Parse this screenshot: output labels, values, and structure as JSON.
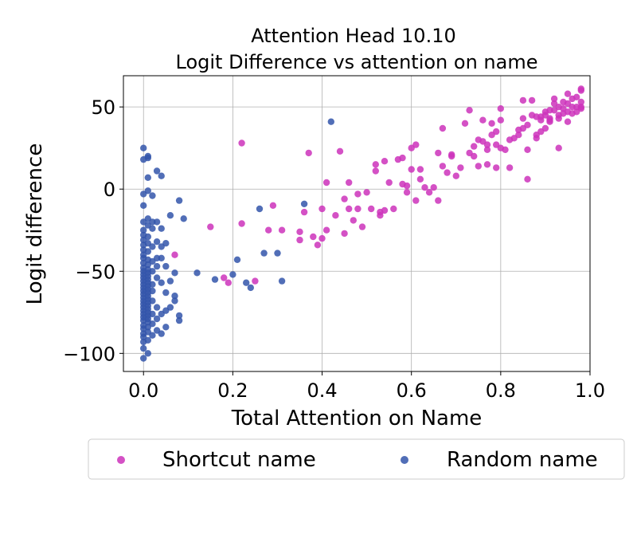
{
  "chart_data": {
    "type": "scatter",
    "title_line1": "Attention Head 10.10",
    "title_line2": "Logit Difference vs attention on name",
    "xlabel": "Total Attention on Name",
    "ylabel": "Logit difference",
    "xlim": [
      -0.045,
      1.0
    ],
    "ylim": [
      -111,
      69
    ],
    "xticks": [
      0.0,
      0.2,
      0.4,
      0.6,
      0.8,
      1.0
    ],
    "xtick_labels": [
      "0.0",
      "0.2",
      "0.4",
      "0.6",
      "0.8",
      "1.0"
    ],
    "yticks": [
      50,
      0,
      -50,
      -100
    ],
    "ytick_labels": [
      "50",
      "0",
      "−50",
      "−100"
    ],
    "grid": true,
    "legend_placement": "below",
    "series": [
      {
        "name": "Shortcut name",
        "color": "#cc33bb",
        "points": [
          [
            0.07,
            -40
          ],
          [
            0.15,
            -23
          ],
          [
            0.18,
            -54
          ],
          [
            0.19,
            -57
          ],
          [
            0.22,
            -21
          ],
          [
            0.22,
            28
          ],
          [
            0.25,
            -56
          ],
          [
            0.28,
            -25
          ],
          [
            0.29,
            -10
          ],
          [
            0.31,
            -25
          ],
          [
            0.35,
            -26
          ],
          [
            0.35,
            -31
          ],
          [
            0.36,
            -14
          ],
          [
            0.37,
            22
          ],
          [
            0.38,
            -29
          ],
          [
            0.39,
            -34
          ],
          [
            0.4,
            -12
          ],
          [
            0.4,
            -30
          ],
          [
            0.41,
            -25
          ],
          [
            0.41,
            4
          ],
          [
            0.43,
            -16
          ],
          [
            0.44,
            23
          ],
          [
            0.45,
            -27
          ],
          [
            0.45,
            -6
          ],
          [
            0.46,
            -12
          ],
          [
            0.46,
            4
          ],
          [
            0.47,
            -19
          ],
          [
            0.48,
            -3
          ],
          [
            0.48,
            -12
          ],
          [
            0.49,
            -23
          ],
          [
            0.5,
            -2
          ],
          [
            0.51,
            -12
          ],
          [
            0.52,
            11
          ],
          [
            0.52,
            15
          ],
          [
            0.53,
            -14
          ],
          [
            0.53,
            -16
          ],
          [
            0.54,
            17
          ],
          [
            0.54,
            -13
          ],
          [
            0.55,
            4
          ],
          [
            0.56,
            -12
          ],
          [
            0.57,
            18
          ],
          [
            0.58,
            19
          ],
          [
            0.58,
            3
          ],
          [
            0.59,
            -2
          ],
          [
            0.59,
            2
          ],
          [
            0.6,
            12
          ],
          [
            0.6,
            25
          ],
          [
            0.61,
            27
          ],
          [
            0.61,
            -7
          ],
          [
            0.62,
            12
          ],
          [
            0.62,
            6
          ],
          [
            0.63,
            1
          ],
          [
            0.64,
            -2
          ],
          [
            0.65,
            1
          ],
          [
            0.66,
            -7
          ],
          [
            0.66,
            22
          ],
          [
            0.67,
            37
          ],
          [
            0.67,
            14
          ],
          [
            0.68,
            10
          ],
          [
            0.69,
            21
          ],
          [
            0.69,
            20
          ],
          [
            0.7,
            8
          ],
          [
            0.71,
            13
          ],
          [
            0.72,
            40
          ],
          [
            0.73,
            48
          ],
          [
            0.73,
            22
          ],
          [
            0.74,
            26
          ],
          [
            0.74,
            20
          ],
          [
            0.75,
            30
          ],
          [
            0.75,
            14
          ],
          [
            0.76,
            42
          ],
          [
            0.76,
            29
          ],
          [
            0.77,
            27
          ],
          [
            0.77,
            24
          ],
          [
            0.77,
            15
          ],
          [
            0.78,
            40
          ],
          [
            0.78,
            33
          ],
          [
            0.79,
            13
          ],
          [
            0.79,
            35
          ],
          [
            0.79,
            27
          ],
          [
            0.8,
            25
          ],
          [
            0.8,
            49
          ],
          [
            0.8,
            42
          ],
          [
            0.81,
            24
          ],
          [
            0.82,
            30
          ],
          [
            0.82,
            13
          ],
          [
            0.83,
            31
          ],
          [
            0.84,
            36
          ],
          [
            0.84,
            33
          ],
          [
            0.85,
            54
          ],
          [
            0.85,
            43
          ],
          [
            0.85,
            37
          ],
          [
            0.86,
            39
          ],
          [
            0.86,
            24
          ],
          [
            0.86,
            6
          ],
          [
            0.87,
            54
          ],
          [
            0.87,
            45
          ],
          [
            0.88,
            44
          ],
          [
            0.88,
            31
          ],
          [
            0.88,
            33
          ],
          [
            0.89,
            35
          ],
          [
            0.89,
            44
          ],
          [
            0.89,
            42
          ],
          [
            0.9,
            47
          ],
          [
            0.9,
            37
          ],
          [
            0.9,
            45
          ],
          [
            0.91,
            41
          ],
          [
            0.91,
            48
          ],
          [
            0.91,
            43
          ],
          [
            0.91,
            42
          ],
          [
            0.92,
            52
          ],
          [
            0.92,
            55
          ],
          [
            0.92,
            48
          ],
          [
            0.93,
            45
          ],
          [
            0.93,
            50
          ],
          [
            0.93,
            43
          ],
          [
            0.93,
            25
          ],
          [
            0.94,
            53
          ],
          [
            0.94,
            49
          ],
          [
            0.94,
            46
          ],
          [
            0.95,
            47
          ],
          [
            0.95,
            52
          ],
          [
            0.95,
            58
          ],
          [
            0.95,
            41
          ],
          [
            0.96,
            50
          ],
          [
            0.96,
            55
          ],
          [
            0.96,
            46
          ],
          [
            0.97,
            50
          ],
          [
            0.97,
            56
          ],
          [
            0.97,
            47
          ],
          [
            0.98,
            60
          ],
          [
            0.98,
            50
          ],
          [
            0.98,
            53
          ],
          [
            0.98,
            61
          ],
          [
            0.98,
            49
          ]
        ]
      },
      {
        "name": "Random name",
        "color": "#3355aa",
        "points": [
          [
            0.0,
            -103
          ],
          [
            0.0,
            -97
          ],
          [
            0.0,
            -93
          ],
          [
            0.0,
            -90
          ],
          [
            0.0,
            -88
          ],
          [
            0.0,
            -85
          ],
          [
            0.0,
            -83
          ],
          [
            0.0,
            -80
          ],
          [
            0.0,
            -78
          ],
          [
            0.0,
            -76
          ],
          [
            0.0,
            -74
          ],
          [
            0.0,
            -72
          ],
          [
            0.0,
            -70
          ],
          [
            0.0,
            -68
          ],
          [
            0.0,
            -66
          ],
          [
            0.0,
            -64
          ],
          [
            0.0,
            -62
          ],
          [
            0.0,
            -60
          ],
          [
            0.0,
            -58
          ],
          [
            0.0,
            -56
          ],
          [
            0.0,
            -54
          ],
          [
            0.0,
            -52
          ],
          [
            0.0,
            -50
          ],
          [
            0.0,
            -48
          ],
          [
            0.0,
            -45
          ],
          [
            0.0,
            -42
          ],
          [
            0.0,
            -40
          ],
          [
            0.0,
            -37
          ],
          [
            0.0,
            -34
          ],
          [
            0.0,
            -31
          ],
          [
            0.0,
            -28
          ],
          [
            0.0,
            -25
          ],
          [
            0.0,
            -20
          ],
          [
            0.0,
            -10
          ],
          [
            0.0,
            -3
          ],
          [
            0.0,
            18
          ],
          [
            0.0,
            25
          ],
          [
            0.01,
            -100
          ],
          [
            0.01,
            -92
          ],
          [
            0.01,
            -87
          ],
          [
            0.01,
            -84
          ],
          [
            0.01,
            -81
          ],
          [
            0.01,
            -79
          ],
          [
            0.01,
            -77
          ],
          [
            0.01,
            -75
          ],
          [
            0.01,
            -73
          ],
          [
            0.01,
            -71
          ],
          [
            0.01,
            -69
          ],
          [
            0.01,
            -67
          ],
          [
            0.01,
            -65
          ],
          [
            0.01,
            -63
          ],
          [
            0.01,
            -61
          ],
          [
            0.01,
            -59
          ],
          [
            0.01,
            -57
          ],
          [
            0.01,
            -55
          ],
          [
            0.01,
            -53
          ],
          [
            0.01,
            -51
          ],
          [
            0.01,
            -49
          ],
          [
            0.01,
            -46
          ],
          [
            0.01,
            -43
          ],
          [
            0.01,
            -38
          ],
          [
            0.01,
            -33
          ],
          [
            0.01,
            -29
          ],
          [
            0.01,
            -22
          ],
          [
            0.01,
            -18
          ],
          [
            0.01,
            -1
          ],
          [
            0.01,
            7
          ],
          [
            0.01,
            19
          ],
          [
            0.01,
            20
          ],
          [
            0.02,
            -89
          ],
          [
            0.02,
            -82
          ],
          [
            0.02,
            -76
          ],
          [
            0.02,
            -68
          ],
          [
            0.02,
            -62
          ],
          [
            0.02,
            -58
          ],
          [
            0.02,
            -50
          ],
          [
            0.02,
            -44
          ],
          [
            0.02,
            -35
          ],
          [
            0.02,
            -24
          ],
          [
            0.02,
            -20
          ],
          [
            0.02,
            -4
          ],
          [
            0.03,
            -86
          ],
          [
            0.03,
            -79
          ],
          [
            0.03,
            -72
          ],
          [
            0.03,
            -54
          ],
          [
            0.03,
            -47
          ],
          [
            0.03,
            -42
          ],
          [
            0.03,
            -32
          ],
          [
            0.03,
            -20
          ],
          [
            0.03,
            11
          ],
          [
            0.04,
            -88
          ],
          [
            0.04,
            -76
          ],
          [
            0.04,
            -57
          ],
          [
            0.04,
            -42
          ],
          [
            0.04,
            -35
          ],
          [
            0.04,
            -24
          ],
          [
            0.04,
            8
          ],
          [
            0.05,
            -84
          ],
          [
            0.05,
            -74
          ],
          [
            0.05,
            -63
          ],
          [
            0.05,
            -47
          ],
          [
            0.05,
            -33
          ],
          [
            0.06,
            -72
          ],
          [
            0.06,
            -56
          ],
          [
            0.06,
            -16
          ],
          [
            0.07,
            -65
          ],
          [
            0.07,
            -51
          ],
          [
            0.07,
            -68
          ],
          [
            0.08,
            -80
          ],
          [
            0.08,
            -7
          ],
          [
            0.08,
            -77
          ],
          [
            0.09,
            -18
          ],
          [
            0.12,
            -51
          ],
          [
            0.16,
            -55
          ],
          [
            0.2,
            -52
          ],
          [
            0.21,
            -43
          ],
          [
            0.23,
            -57
          ],
          [
            0.24,
            -60
          ],
          [
            0.26,
            -12
          ],
          [
            0.27,
            -39
          ],
          [
            0.3,
            -39
          ],
          [
            0.31,
            -56
          ],
          [
            0.36,
            -9
          ],
          [
            0.42,
            41
          ]
        ]
      }
    ]
  }
}
